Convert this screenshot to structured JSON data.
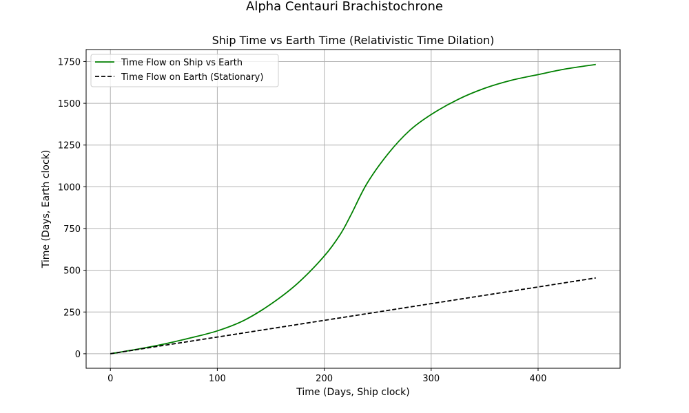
{
  "figure": {
    "suptitle": "Alpha Centauri Brachistochrone"
  },
  "chart_data": {
    "type": "line",
    "title": "Ship Time vs Earth Time (Relativistic Time Dilation)",
    "xlabel": "Time (Days, Ship clock)",
    "ylabel": "Time (Days, Earth clock)",
    "xlim": [
      -22.7,
      476.7
    ],
    "ylim": [
      -87,
      1822
    ],
    "xticks": [
      0,
      100,
      200,
      300,
      400
    ],
    "yticks": [
      0,
      250,
      500,
      750,
      1000,
      1250,
      1500,
      1750
    ],
    "grid": true,
    "legend_position": "upper-left",
    "series": [
      {
        "name": "Time Flow on Ship vs Earth",
        "color": "#008000",
        "style": "solid",
        "x": [
          0,
          25,
          50,
          75,
          100,
          125,
          150,
          175,
          200,
          215,
          225,
          240,
          260,
          280,
          300,
          325,
          350,
          375,
          400,
          425,
          454
        ],
        "y": [
          0,
          27,
          58,
          95,
          137,
          200,
          297,
          421,
          585,
          715,
          832,
          1020,
          1200,
          1338,
          1433,
          1523,
          1590,
          1638,
          1672,
          1705,
          1733
        ]
      },
      {
        "name": "Time Flow on Earth (Stationary)",
        "color": "#000000",
        "style": "dashed",
        "x": [
          0,
          454
        ],
        "y": [
          0,
          454
        ]
      }
    ]
  }
}
